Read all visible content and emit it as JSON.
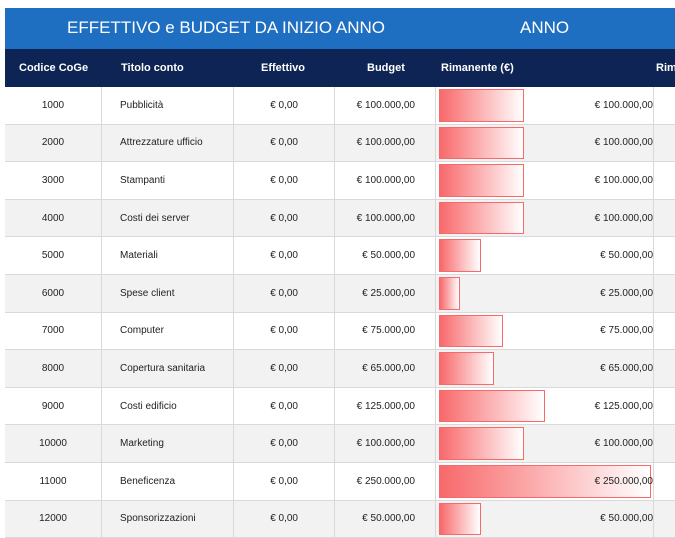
{
  "title": {
    "left": "EFFETTIVO e BUDGET DA INIZIO ANNO",
    "right": "ANNO"
  },
  "headers": {
    "code": "Codice CoGe",
    "title": "Titolo conto",
    "actual": "Effettivo",
    "budget": "Budget",
    "remaining": "Rimanente (€)",
    "remaining_cut": "Rim"
  },
  "colors": {
    "title_bar": "#1e6fc1",
    "header_bar": "#0e2454",
    "databar": "#f8696b"
  },
  "databar_max": 250000,
  "rows": [
    {
      "code": "1000",
      "title": "Pubblicità",
      "actual": "€ 0,00",
      "budget": "€ 100.000,00",
      "remaining": "€ 100.000,00",
      "remaining_value": 100000
    },
    {
      "code": "2000",
      "title": "Attrezzature ufficio",
      "actual": "€ 0,00",
      "budget": "€ 100.000,00",
      "remaining": "€ 100.000,00",
      "remaining_value": 100000
    },
    {
      "code": "3000",
      "title": "Stampanti",
      "actual": "€ 0,00",
      "budget": "€ 100.000,00",
      "remaining": "€ 100.000,00",
      "remaining_value": 100000
    },
    {
      "code": "4000",
      "title": "Costi dei server",
      "actual": "€ 0,00",
      "budget": "€ 100.000,00",
      "remaining": "€ 100.000,00",
      "remaining_value": 100000
    },
    {
      "code": "5000",
      "title": "Materiali",
      "actual": "€ 0,00",
      "budget": "€ 50.000,00",
      "remaining": "€ 50.000,00",
      "remaining_value": 50000
    },
    {
      "code": "6000",
      "title": "Spese client",
      "actual": "€ 0,00",
      "budget": "€ 25.000,00",
      "remaining": "€ 25.000,00",
      "remaining_value": 25000
    },
    {
      "code": "7000",
      "title": "Computer",
      "actual": "€ 0,00",
      "budget": "€ 75.000,00",
      "remaining": "€ 75.000,00",
      "remaining_value": 75000
    },
    {
      "code": "8000",
      "title": "Copertura sanitaria",
      "actual": "€ 0,00",
      "budget": "€ 65.000,00",
      "remaining": "€ 65.000,00",
      "remaining_value": 65000
    },
    {
      "code": "9000",
      "title": "Costi edificio",
      "actual": "€ 0,00",
      "budget": "€ 125.000,00",
      "remaining": "€ 125.000,00",
      "remaining_value": 125000
    },
    {
      "code": "10000",
      "title": "Marketing",
      "actual": "€ 0,00",
      "budget": "€ 100.000,00",
      "remaining": "€ 100.000,00",
      "remaining_value": 100000
    },
    {
      "code": "11000",
      "title": "Beneficenza",
      "actual": "€ 0,00",
      "budget": "€ 250.000,00",
      "remaining": "€ 250.000,00",
      "remaining_value": 250000
    },
    {
      "code": "12000",
      "title": "Sponsorizzazioni",
      "actual": "€ 0,00",
      "budget": "€ 50.000,00",
      "remaining": "€ 50.000,00",
      "remaining_value": 50000
    }
  ]
}
